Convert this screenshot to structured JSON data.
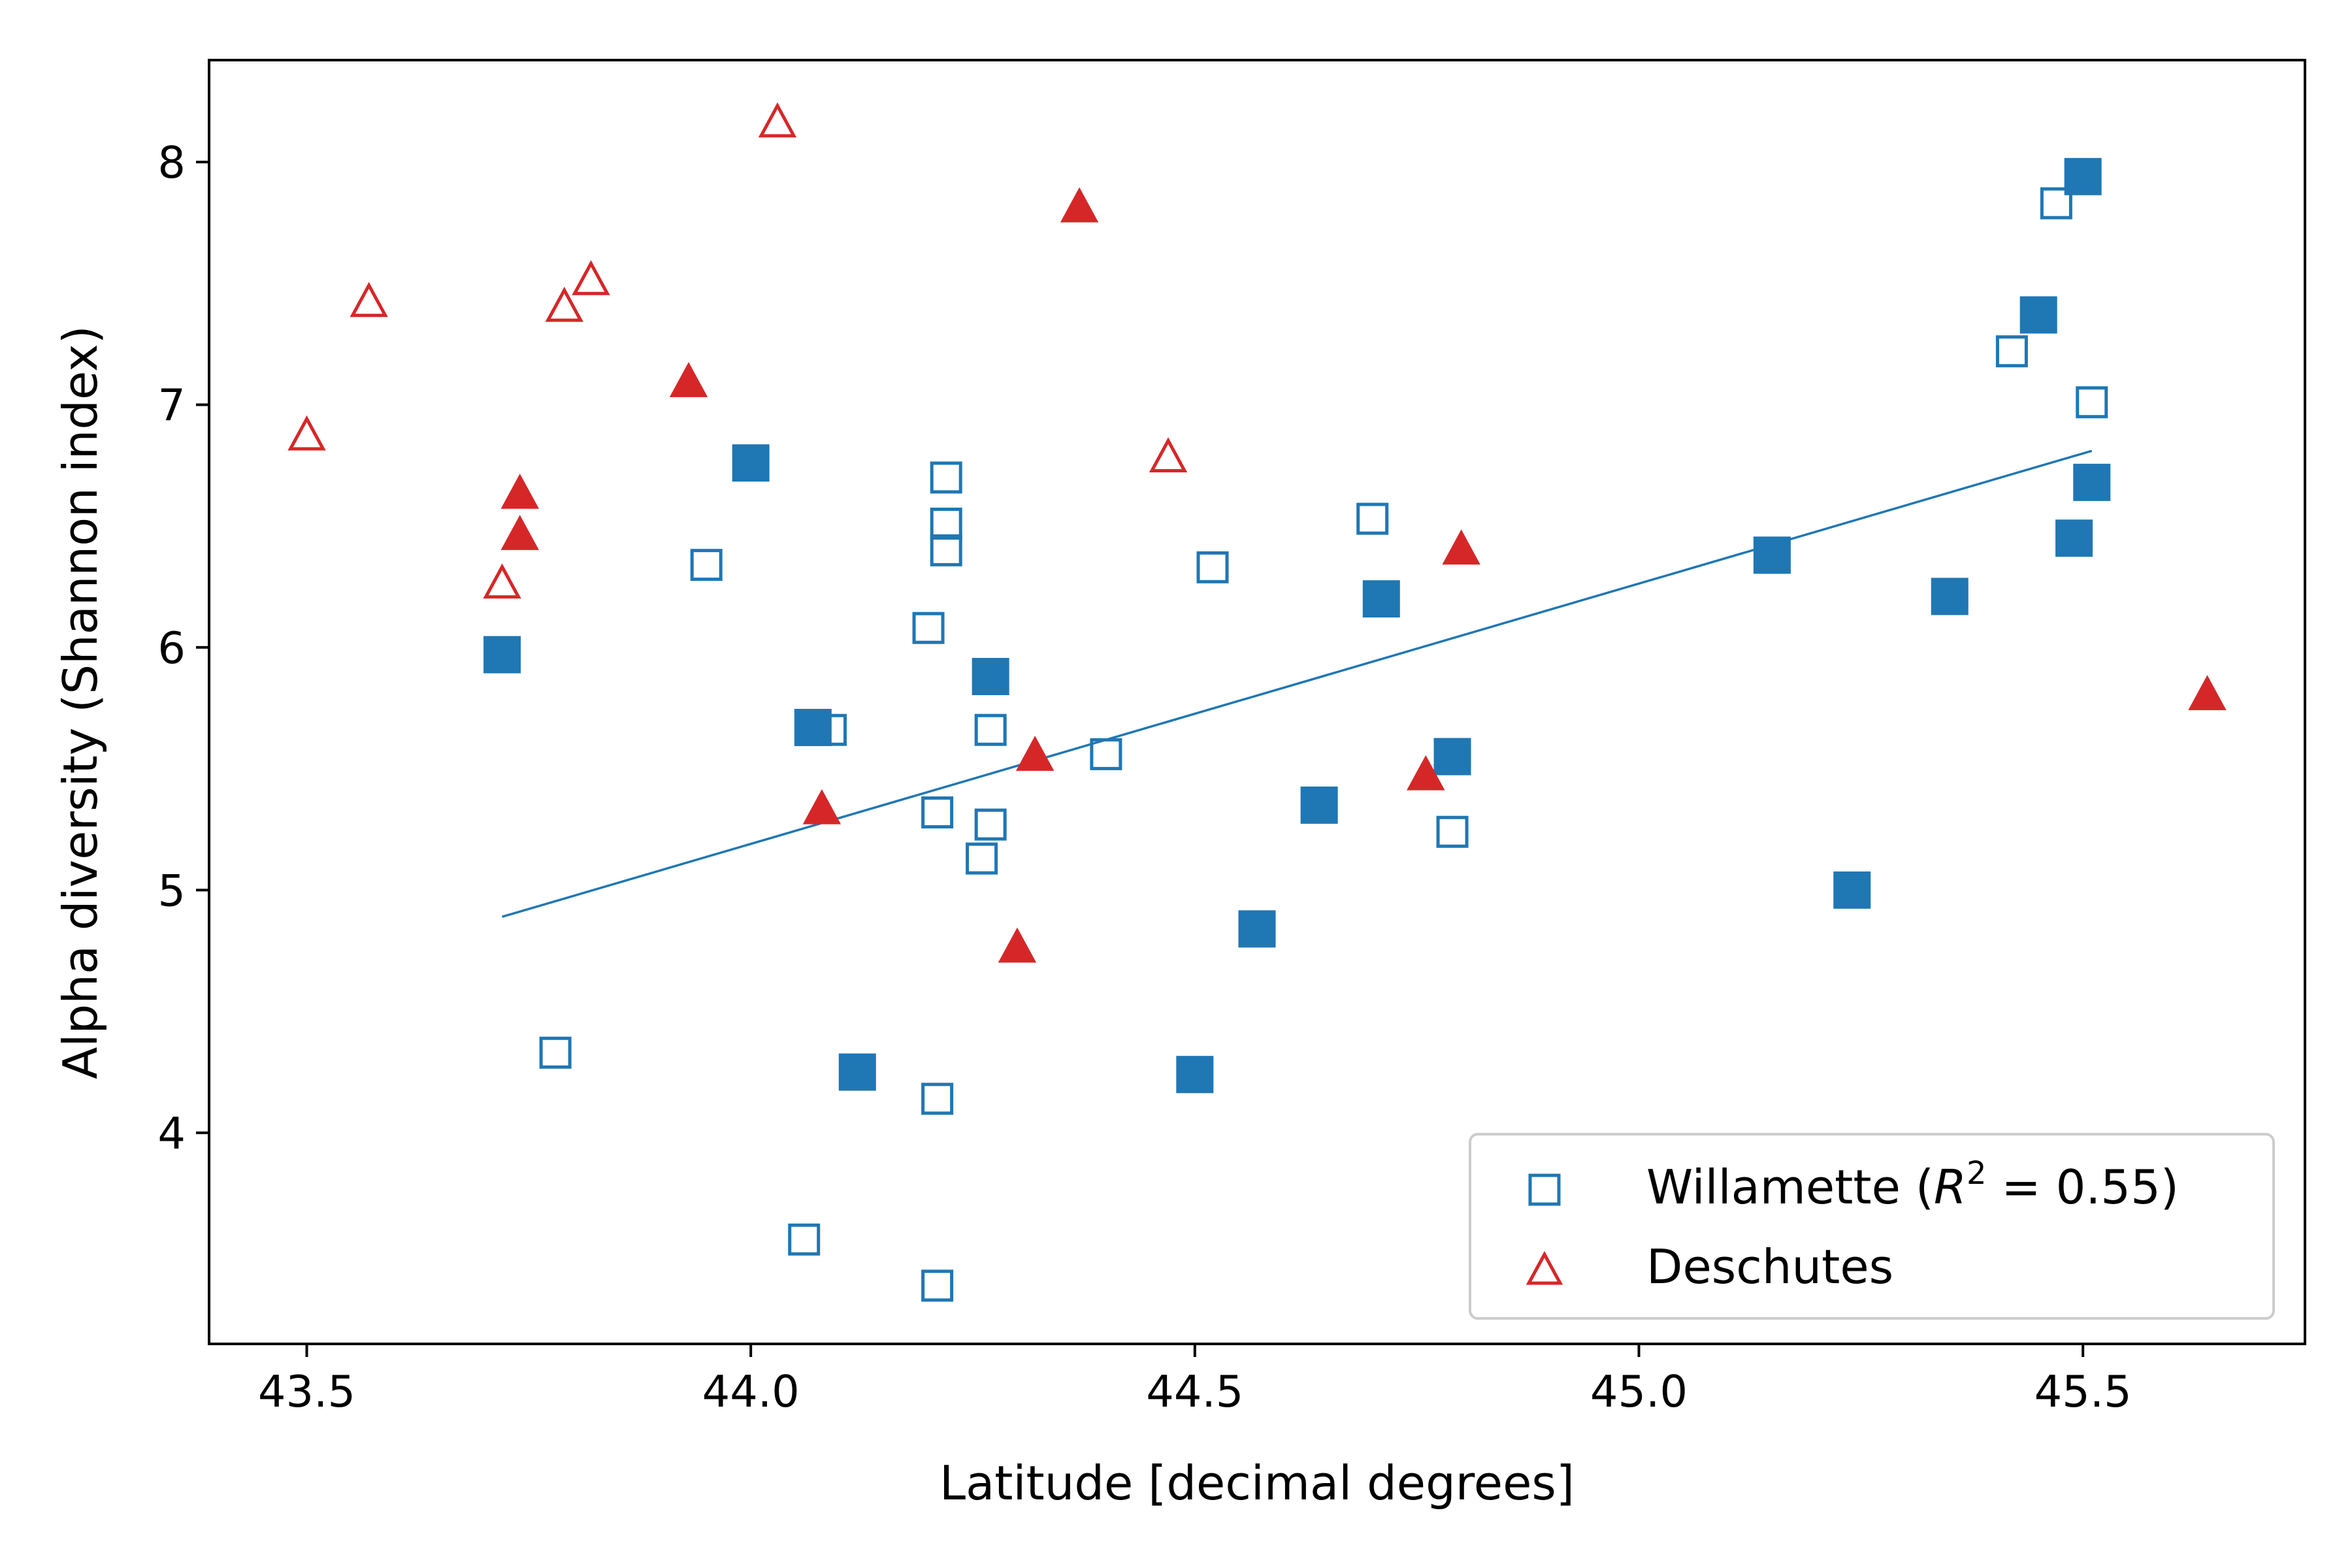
{
  "chart_data": {
    "type": "scatter",
    "xlabel": "Latitude [decimal degrees]",
    "ylabel": "Alpha diversity (Shannon index)",
    "xlim": [
      43.39,
      45.75
    ],
    "ylim": [
      3.13,
      8.42
    ],
    "xticks": [
      43.5,
      44.0,
      44.5,
      45.0,
      45.5
    ],
    "xtick_labels": [
      "43.5",
      "44.0",
      "44.5",
      "45.0",
      "45.5"
    ],
    "yticks": [
      4,
      5,
      6,
      7,
      8
    ],
    "ytick_labels": [
      "4",
      "5",
      "6",
      "7",
      "8"
    ],
    "grid": false,
    "legend_position": "lower-right",
    "colors": {
      "willamette": "#1f77b4",
      "deschutes": "#d62728"
    },
    "series": [
      {
        "name": "Willamette",
        "legend_label_prefix": "Willamette (",
        "legend_label_r": "R",
        "legend_label_exp": "2",
        "legend_label_suffix": " = 0.55)",
        "marker": "square",
        "color": "#1f77b4",
        "points": [
          {
            "x": 43.72,
            "y": 5.97,
            "filled": true
          },
          {
            "x": 43.78,
            "y": 4.33,
            "filled": false
          },
          {
            "x": 43.95,
            "y": 6.34,
            "filled": false
          },
          {
            "x": 44.0,
            "y": 6.76,
            "filled": true
          },
          {
            "x": 44.06,
            "y": 3.56,
            "filled": false
          },
          {
            "x": 44.07,
            "y": 5.67,
            "filled": true
          },
          {
            "x": 44.09,
            "y": 5.66,
            "filled": false
          },
          {
            "x": 44.12,
            "y": 4.25,
            "filled": true
          },
          {
            "x": 44.2,
            "y": 6.08,
            "filled": false
          },
          {
            "x": 44.21,
            "y": 5.32,
            "filled": false
          },
          {
            "x": 44.21,
            "y": 4.14,
            "filled": false
          },
          {
            "x": 44.21,
            "y": 3.37,
            "filled": false
          },
          {
            "x": 44.22,
            "y": 6.7,
            "filled": false
          },
          {
            "x": 44.22,
            "y": 6.51,
            "filled": false
          },
          {
            "x": 44.22,
            "y": 6.4,
            "filled": false
          },
          {
            "x": 44.26,
            "y": 5.13,
            "filled": false
          },
          {
            "x": 44.27,
            "y": 5.88,
            "filled": true
          },
          {
            "x": 44.27,
            "y": 5.66,
            "filled": false
          },
          {
            "x": 44.27,
            "y": 5.27,
            "filled": false
          },
          {
            "x": 44.4,
            "y": 5.56,
            "filled": false
          },
          {
            "x": 44.5,
            "y": 4.24,
            "filled": true
          },
          {
            "x": 44.52,
            "y": 6.33,
            "filled": false
          },
          {
            "x": 44.57,
            "y": 4.84,
            "filled": true
          },
          {
            "x": 44.64,
            "y": 5.35,
            "filled": true
          },
          {
            "x": 44.7,
            "y": 6.53,
            "filled": false
          },
          {
            "x": 44.71,
            "y": 6.2,
            "filled": true
          },
          {
            "x": 44.79,
            "y": 5.55,
            "filled": true
          },
          {
            "x": 44.79,
            "y": 5.24,
            "filled": false
          },
          {
            "x": 45.15,
            "y": 6.38,
            "filled": true
          },
          {
            "x": 45.24,
            "y": 5.0,
            "filled": true
          },
          {
            "x": 45.35,
            "y": 6.21,
            "filled": true
          },
          {
            "x": 45.42,
            "y": 7.22,
            "filled": false
          },
          {
            "x": 45.45,
            "y": 7.37,
            "filled": true
          },
          {
            "x": 45.47,
            "y": 7.83,
            "filled": false
          },
          {
            "x": 45.49,
            "y": 6.45,
            "filled": true
          },
          {
            "x": 45.5,
            "y": 7.94,
            "filled": true
          },
          {
            "x": 45.51,
            "y": 6.68,
            "filled": true
          },
          {
            "x": 45.51,
            "y": 7.01,
            "filled": false
          }
        ],
        "fit_line": {
          "x": [
            43.72,
            45.51
          ],
          "y": [
            4.89,
            6.81
          ]
        }
      },
      {
        "name": "Deschutes",
        "marker": "triangle",
        "color": "#d62728",
        "points": [
          {
            "x": 43.5,
            "y": 6.88,
            "filled": false
          },
          {
            "x": 43.57,
            "y": 7.43,
            "filled": false
          },
          {
            "x": 43.72,
            "y": 6.27,
            "filled": false
          },
          {
            "x": 43.74,
            "y": 6.47,
            "filled": true
          },
          {
            "x": 43.74,
            "y": 6.64,
            "filled": true
          },
          {
            "x": 43.79,
            "y": 7.41,
            "filled": false
          },
          {
            "x": 43.82,
            "y": 7.52,
            "filled": false
          },
          {
            "x": 43.93,
            "y": 7.1,
            "filled": true
          },
          {
            "x": 44.03,
            "y": 8.17,
            "filled": false
          },
          {
            "x": 44.08,
            "y": 5.34,
            "filled": true
          },
          {
            "x": 44.3,
            "y": 4.77,
            "filled": true
          },
          {
            "x": 44.32,
            "y": 5.56,
            "filled": true
          },
          {
            "x": 44.37,
            "y": 7.82,
            "filled": true
          },
          {
            "x": 44.47,
            "y": 6.79,
            "filled": false
          },
          {
            "x": 44.76,
            "y": 5.48,
            "filled": true
          },
          {
            "x": 44.8,
            "y": 6.41,
            "filled": true
          },
          {
            "x": 45.64,
            "y": 5.81,
            "filled": true
          }
        ]
      }
    ]
  }
}
